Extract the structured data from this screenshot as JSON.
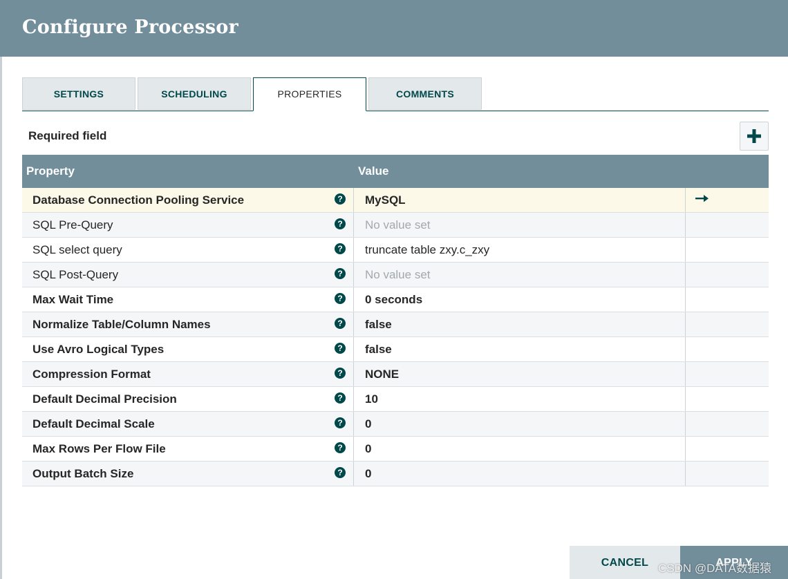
{
  "dialog": {
    "title": "Configure Processor"
  },
  "tabs": [
    {
      "label": "SETTINGS",
      "active": false
    },
    {
      "label": "SCHEDULING",
      "active": false
    },
    {
      "label": "PROPERTIES",
      "active": true
    },
    {
      "label": "COMMENTS",
      "active": false
    }
  ],
  "properties_panel": {
    "required_label": "Required field",
    "add_icon": "plus-icon",
    "columns": {
      "property": "Property",
      "value": "Value"
    },
    "rows": [
      {
        "name": "Database Connection Pooling Service",
        "value": "MySQL",
        "required": true,
        "unset": false,
        "action": "arrow-right-icon"
      },
      {
        "name": "SQL Pre-Query",
        "value": "No value set",
        "required": false,
        "unset": true
      },
      {
        "name": "SQL select query",
        "value": "truncate table zxy.c_zxy",
        "required": false,
        "unset": false
      },
      {
        "name": "SQL Post-Query",
        "value": "No value set",
        "required": false,
        "unset": true
      },
      {
        "name": "Max Wait Time",
        "value": "0 seconds",
        "required": true,
        "unset": false
      },
      {
        "name": "Normalize Table/Column Names",
        "value": "false",
        "required": true,
        "unset": false
      },
      {
        "name": "Use Avro Logical Types",
        "value": "false",
        "required": true,
        "unset": false
      },
      {
        "name": "Compression Format",
        "value": "NONE",
        "required": true,
        "unset": false
      },
      {
        "name": "Default Decimal Precision",
        "value": "10",
        "required": true,
        "unset": false
      },
      {
        "name": "Default Decimal Scale",
        "value": "0",
        "required": true,
        "unset": false
      },
      {
        "name": "Max Rows Per Flow File",
        "value": "0",
        "required": true,
        "unset": false
      },
      {
        "name": "Output Batch Size",
        "value": "0",
        "required": true,
        "unset": false
      }
    ],
    "help_glyph": "?"
  },
  "footer": {
    "cancel_label": "CANCEL",
    "apply_label": "APPLY"
  },
  "watermark": "CSDN @DATA数据猿",
  "colors": {
    "header": "#728e9b",
    "accent": "#004849",
    "selected_row": "#fdf9e8"
  }
}
